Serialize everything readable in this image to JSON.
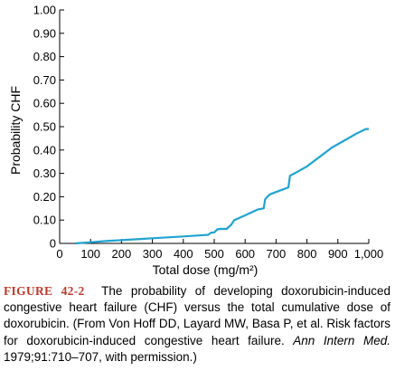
{
  "chart_data": {
    "type": "line",
    "xlabel": "Total dose (mg/m²)",
    "ylabel": "Probability CHF",
    "xlim": [
      0,
      1000
    ],
    "ylim": [
      0,
      1.0
    ],
    "xticks": [
      0,
      100,
      200,
      300,
      400,
      500,
      600,
      700,
      800,
      900,
      1000
    ],
    "xtick_labels": [
      "0",
      "100",
      "200",
      "300",
      "400",
      "500",
      "600",
      "700",
      "800",
      "900",
      "1,000"
    ],
    "yticks": [
      0,
      0.1,
      0.2,
      0.3,
      0.4,
      0.5,
      0.6,
      0.7,
      0.8,
      0.9,
      1.0
    ],
    "ytick_labels": [
      "0",
      "0.10",
      "0.20",
      "0.30",
      "0.40",
      "0.50",
      "0.60",
      "0.70",
      "0.80",
      "0.90",
      "1.00"
    ],
    "grid": false,
    "line_color": "#1fa3d1",
    "series": [
      {
        "x": [
          50,
          100,
          150,
          200,
          250,
          300,
          350,
          400,
          450,
          480,
          490,
          500,
          510,
          520,
          540,
          555,
          565,
          600,
          640,
          660,
          665,
          680,
          700,
          720,
          740,
          745,
          760,
          800,
          850,
          880,
          920,
          960,
          990,
          1000
        ],
        "y": [
          0.0,
          0.005,
          0.01,
          0.014,
          0.018,
          0.022,
          0.026,
          0.03,
          0.034,
          0.037,
          0.046,
          0.047,
          0.06,
          0.062,
          0.062,
          0.08,
          0.1,
          0.12,
          0.145,
          0.15,
          0.19,
          0.21,
          0.22,
          0.23,
          0.24,
          0.29,
          0.3,
          0.33,
          0.38,
          0.41,
          0.44,
          0.47,
          0.49,
          0.49
        ]
      }
    ]
  },
  "caption": {
    "label": "FIGURE 42-2",
    "text": "The probability of developing doxorubicin-induced congestive heart failure (CHF) versus the total cumulative dose of doxorubicin. (From Von Hoff DD, Layard MW, Basa P, et al. Risk factors for doxorubicin-induced congestive heart failure.",
    "journal": "Ann Intern Med.",
    "citation_end": "1979;91:710–707, with permission.)"
  }
}
